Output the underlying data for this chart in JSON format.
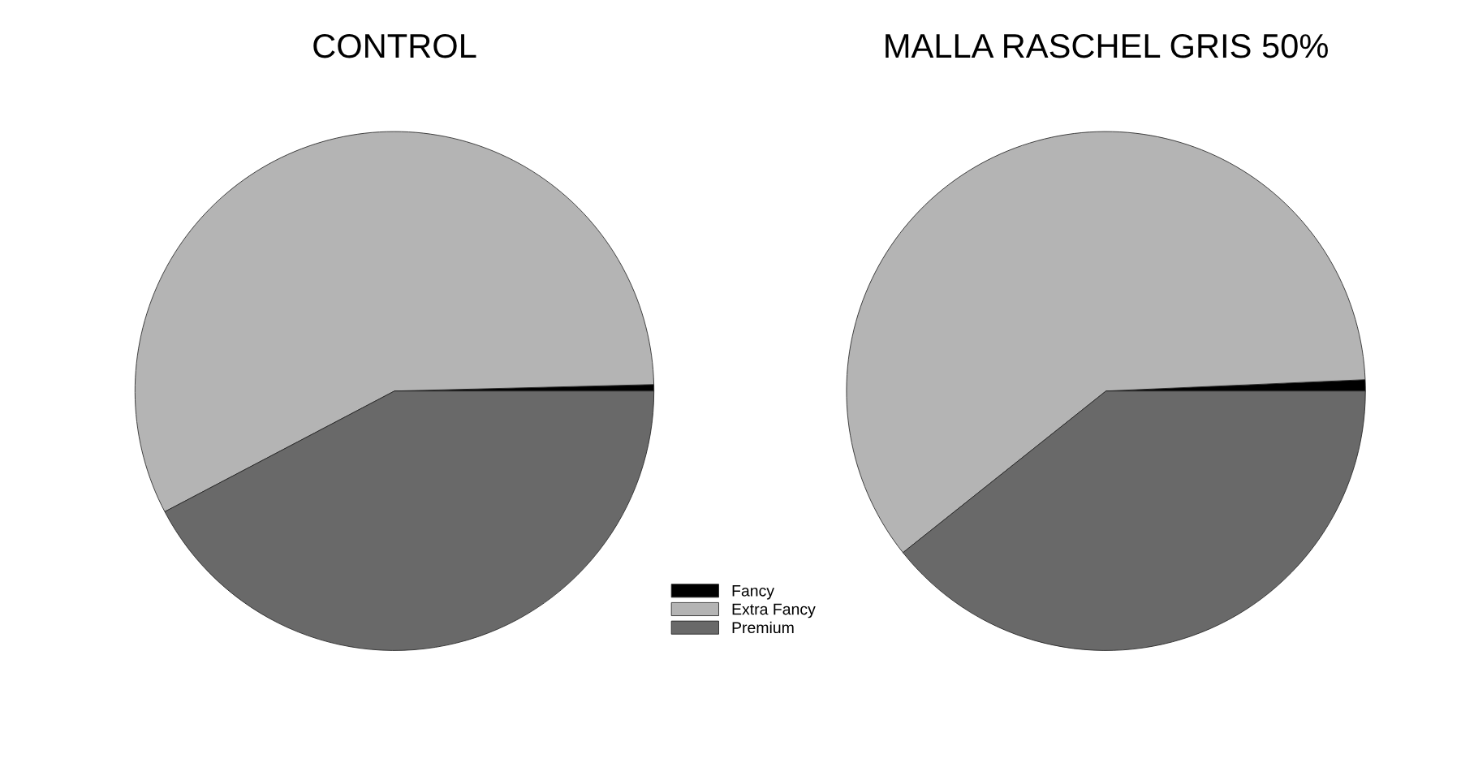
{
  "chart_data": [
    {
      "type": "pie",
      "title": "CONTROL",
      "categories": [
        "Fancy",
        "Extra Fancy",
        "Premium"
      ],
      "values": [
        0.4,
        57.3,
        42.3
      ],
      "colors": [
        "#000000",
        "#b4b4b4",
        "#696969"
      ],
      "legend": "bottom right"
    },
    {
      "type": "pie",
      "title": "MALLA RASCHEL GRIS 50%",
      "categories": [
        null,
        null,
        null
      ],
      "values": [
        0.7,
        60.0,
        39.3
      ],
      "colors": [
        "#000000",
        "#b4b4b4",
        "#696969"
      ]
    }
  ]
}
